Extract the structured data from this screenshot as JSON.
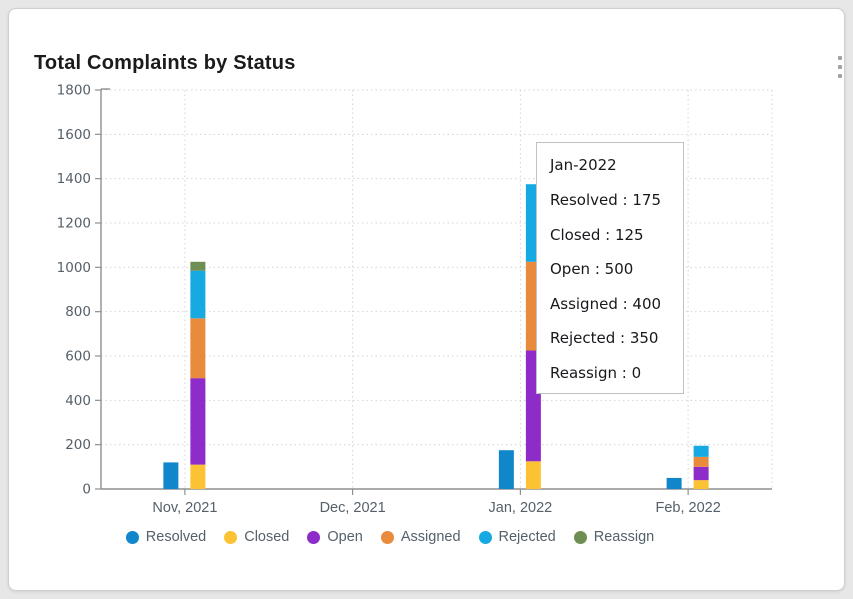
{
  "card": {
    "title": "Total Complaints by Status"
  },
  "menu": {
    "icon": "kebab-menu-icon"
  },
  "tooltip": {
    "title": "Jan-2022",
    "lines": [
      "Resolved : 175",
      "Closed : 125",
      "Open : 500",
      "Assigned : 400",
      "Rejected : 350",
      "Reassign : 0"
    ]
  },
  "chart_data": {
    "type": "bar",
    "stacked": true,
    "title": "Total Complaints by Status",
    "categories": [
      "Nov, 2021",
      "Dec, 2021",
      "Jan, 2022",
      "Feb, 2022"
    ],
    "series": [
      {
        "name": "Resolved",
        "color": "#1186cb",
        "stack": "resolved",
        "values": [
          120,
          0,
          175,
          50
        ]
      },
      {
        "name": "Closed",
        "color": "#fbc334",
        "stack": "others",
        "values": [
          110,
          0,
          125,
          40
        ]
      },
      {
        "name": "Open",
        "color": "#8d2cc9",
        "stack": "others",
        "values": [
          390,
          0,
          500,
          60
        ]
      },
      {
        "name": "Assigned",
        "color": "#e98b3d",
        "stack": "others",
        "values": [
          270,
          0,
          400,
          45
        ]
      },
      {
        "name": "Rejected",
        "color": "#17a9e1",
        "stack": "others",
        "values": [
          215,
          0,
          350,
          50
        ]
      },
      {
        "name": "Reassign",
        "color": "#6f8f52",
        "stack": "others",
        "values": [
          40,
          0,
          0,
          0
        ]
      }
    ],
    "ylim": [
      0,
      1800
    ],
    "ytick_step": 200,
    "yticks": [
      0,
      200,
      400,
      600,
      800,
      1000,
      1200,
      1400,
      1600,
      1800
    ],
    "grid": true,
    "legend_position": "bottom",
    "tooltip_shown_for": "Jan, 2022",
    "colors": {
      "axis": "#8f8f8f",
      "grid": "#d4d4d4",
      "tick_label": "#555f69",
      "legend_label": "#55606b"
    }
  }
}
